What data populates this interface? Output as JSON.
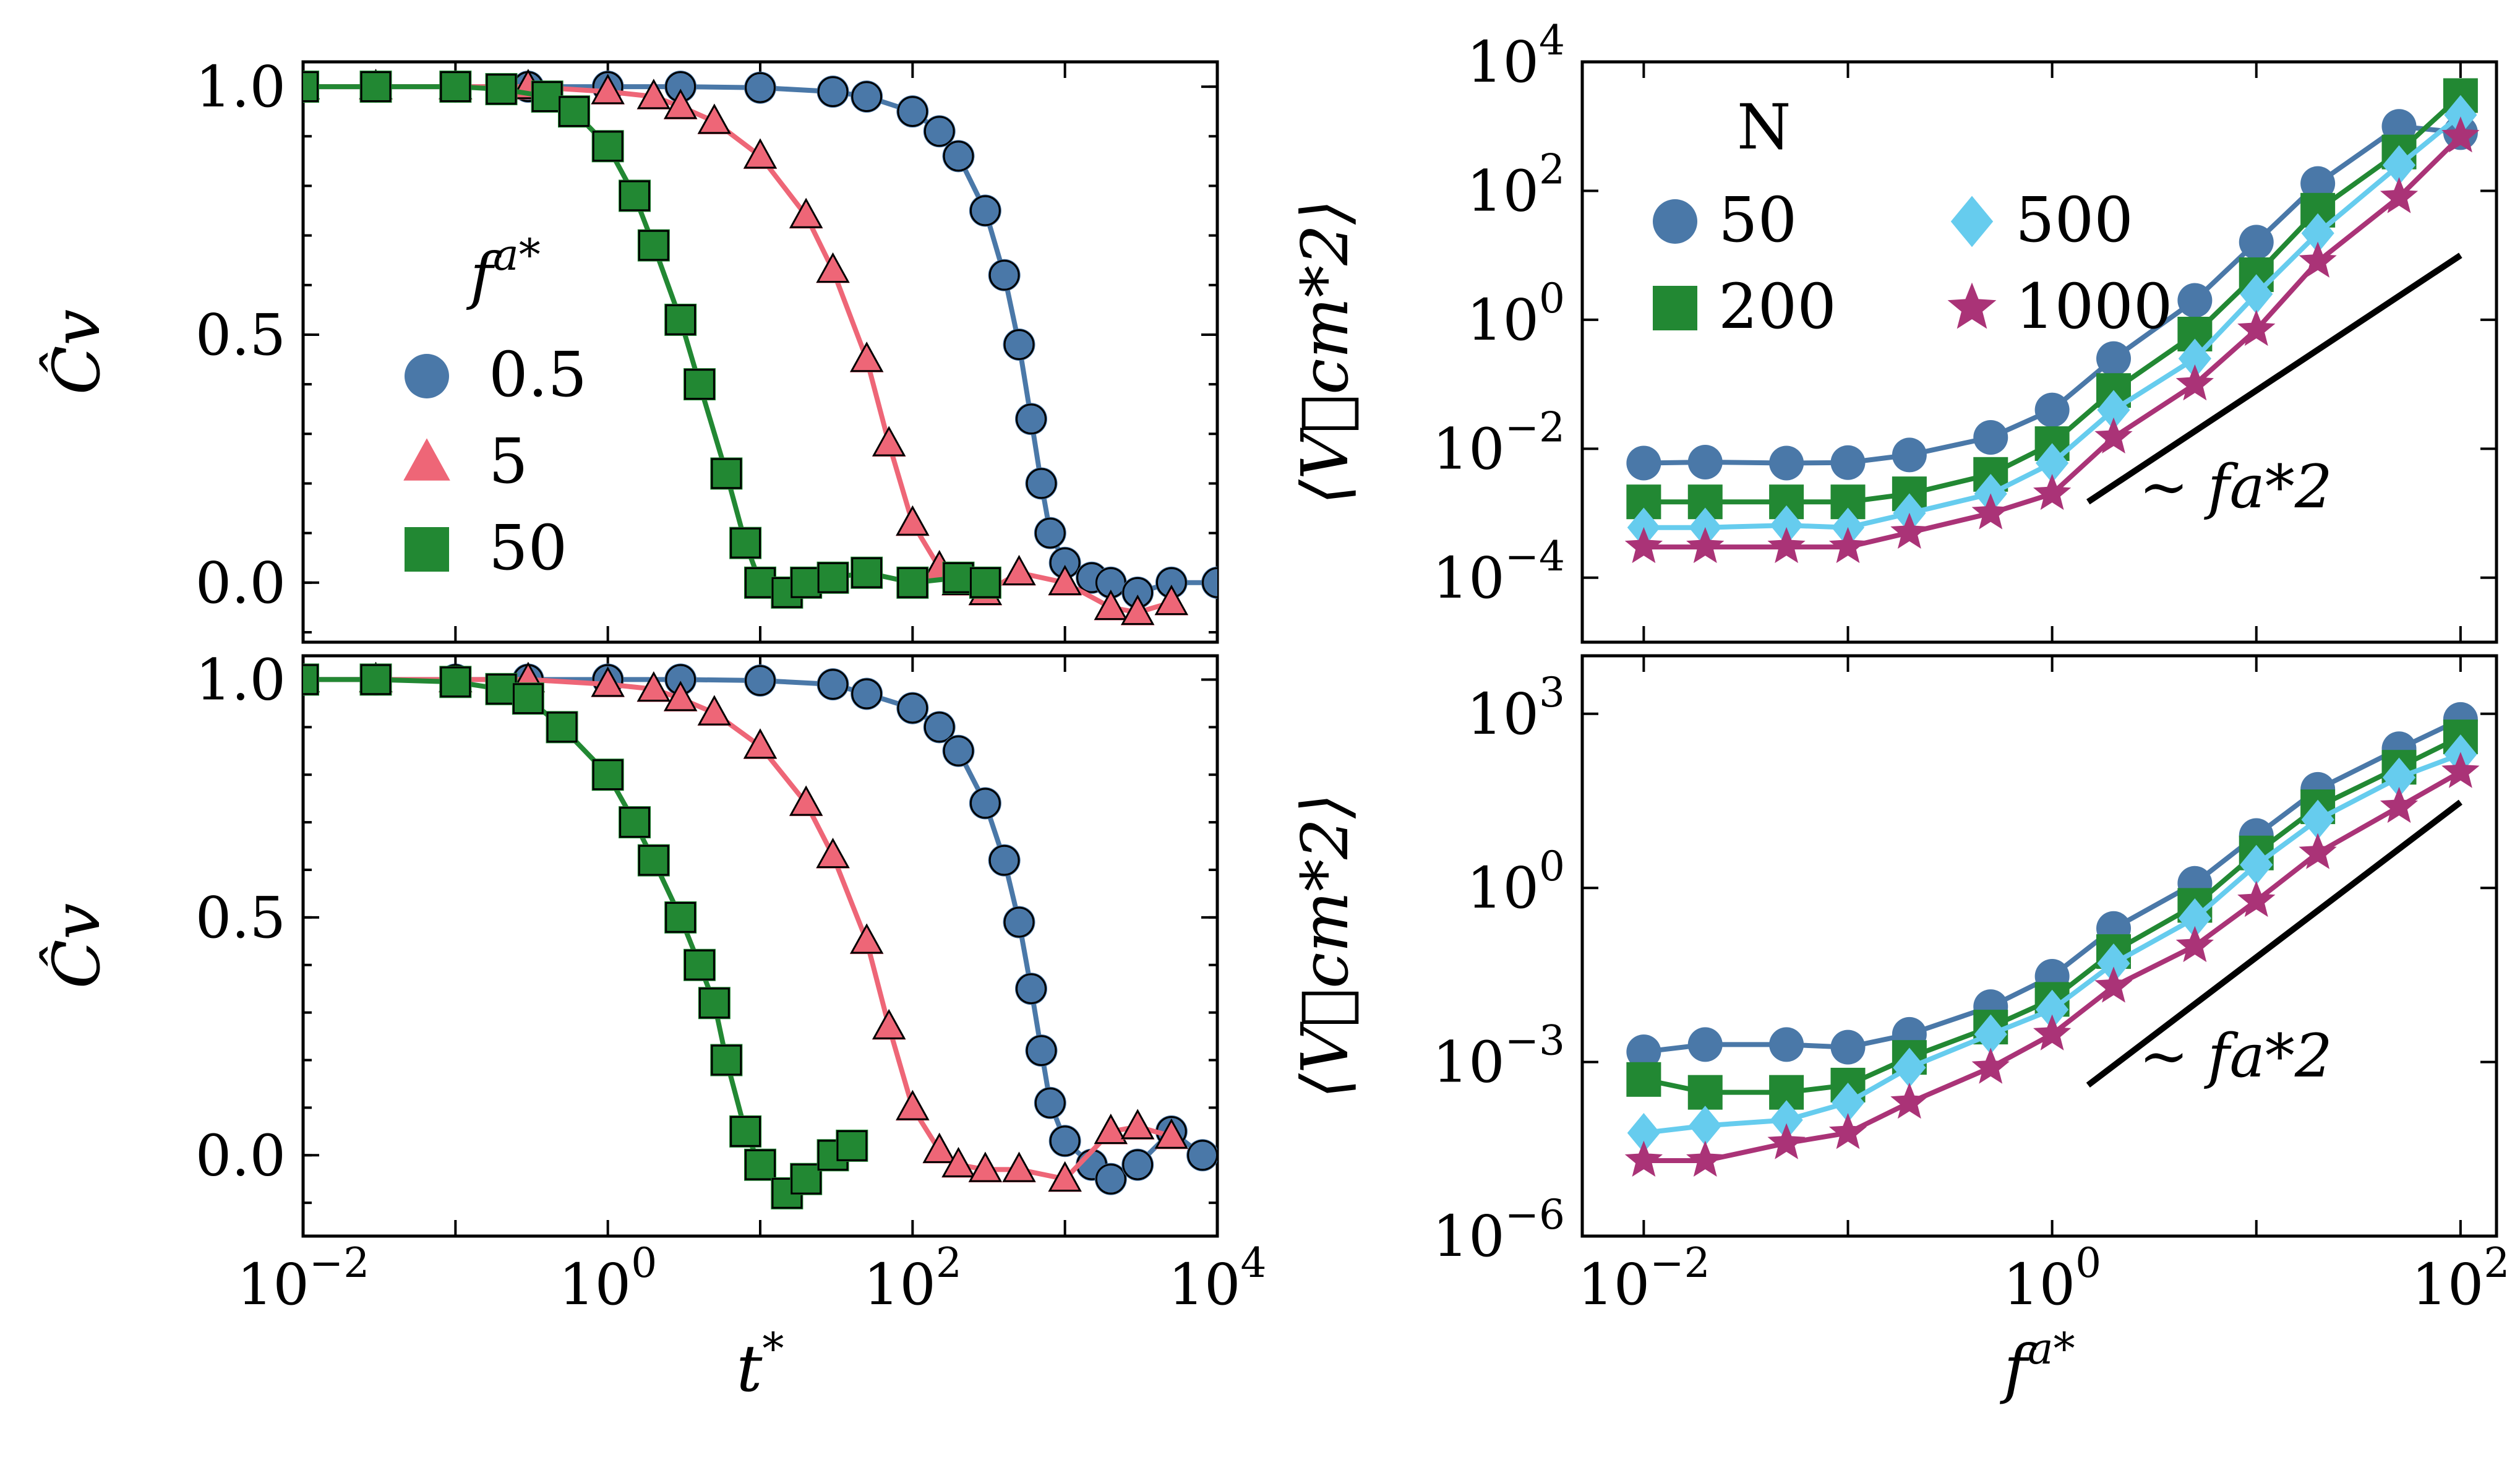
{
  "chart_data": [
    {
      "id": "top-left",
      "type": "line",
      "title": "",
      "xlabel": "",
      "ylabel": "Ĉv",
      "xscale": "log",
      "xlim": [
        0.01,
        10000
      ],
      "ylim": [
        -0.12,
        1.05
      ],
      "yticks": [
        "0.0",
        "0.5",
        "1.0"
      ],
      "xticks": [],
      "legend_title": "fa*",
      "legend_position": "center-left",
      "series": [
        {
          "name": "0.5",
          "color": "#4a78a8",
          "marker": "circle",
          "x": [
            0.01,
            0.03,
            0.1,
            0.3,
            1,
            3,
            10,
            30,
            50,
            100,
            150,
            200,
            300,
            400,
            500,
            600,
            700,
            800,
            1000,
            1500,
            2000,
            3000,
            5000,
            10000
          ],
          "y": [
            1.0,
            1.0,
            1.0,
            1.0,
            1.0,
            1.0,
            0.998,
            0.99,
            0.98,
            0.95,
            0.91,
            0.86,
            0.75,
            0.62,
            0.48,
            0.33,
            0.2,
            0.1,
            0.04,
            0.01,
            0.0,
            -0.02,
            0.0,
            0.0
          ]
        },
        {
          "name": "5",
          "color": "#ee6677",
          "marker": "triangle",
          "x": [
            0.01,
            0.03,
            0.1,
            0.3,
            1,
            2,
            3,
            5,
            10,
            20,
            30,
            50,
            70,
            100,
            150,
            200,
            300,
            500,
            1000,
            2000,
            3000,
            5000
          ],
          "y": [
            1.0,
            1.0,
            1.0,
            1.0,
            0.99,
            0.98,
            0.96,
            0.93,
            0.86,
            0.74,
            0.63,
            0.45,
            0.28,
            0.12,
            0.03,
            0.0,
            -0.02,
            0.02,
            0.0,
            -0.05,
            -0.06,
            -0.04
          ]
        },
        {
          "name": "50",
          "color": "#228833",
          "marker": "square",
          "x": [
            0.01,
            0.03,
            0.1,
            0.2,
            0.4,
            0.6,
            1,
            1.5,
            2,
            3,
            4,
            6,
            8,
            10,
            15,
            20,
            30,
            50,
            100,
            200,
            300
          ],
          "y": [
            1.0,
            1.0,
            1.0,
            0.995,
            0.98,
            0.95,
            0.88,
            0.78,
            0.68,
            0.53,
            0.4,
            0.22,
            0.08,
            0.0,
            -0.02,
            0.0,
            0.01,
            0.02,
            0.0,
            0.01,
            0.0
          ]
        }
      ]
    },
    {
      "id": "bottom-left",
      "type": "line",
      "title": "",
      "xlabel": "t*",
      "ylabel": "Ĉv",
      "xscale": "log",
      "xlim": [
        0.01,
        10000
      ],
      "ylim": [
        -0.17,
        1.05
      ],
      "yticks": [
        "0.0",
        "0.5",
        "1.0"
      ],
      "xticks": [
        "10−2",
        "100",
        "102",
        "104"
      ],
      "series": [
        {
          "name": "0.5",
          "color": "#4a78a8",
          "marker": "circle",
          "x": [
            0.01,
            0.03,
            0.1,
            0.3,
            1,
            3,
            10,
            30,
            50,
            100,
            150,
            200,
            300,
            400,
            500,
            600,
            700,
            800,
            1000,
            1500,
            2000,
            3000,
            5000,
            8000
          ],
          "y": [
            1.0,
            1.0,
            1.0,
            1.0,
            1.0,
            1.0,
            0.998,
            0.99,
            0.97,
            0.94,
            0.9,
            0.85,
            0.74,
            0.62,
            0.49,
            0.35,
            0.22,
            0.11,
            0.03,
            -0.02,
            -0.05,
            -0.02,
            0.05,
            0.0
          ]
        },
        {
          "name": "5",
          "color": "#ee6677",
          "marker": "triangle",
          "x": [
            0.01,
            0.03,
            0.1,
            0.3,
            1,
            2,
            3,
            5,
            10,
            20,
            30,
            50,
            70,
            100,
            150,
            200,
            300,
            500,
            1000,
            2000,
            3000,
            5000
          ],
          "y": [
            1.0,
            1.0,
            1.0,
            1.0,
            0.99,
            0.98,
            0.96,
            0.93,
            0.86,
            0.74,
            0.63,
            0.45,
            0.27,
            0.1,
            0.01,
            -0.02,
            -0.03,
            -0.03,
            -0.05,
            0.05,
            0.06,
            0.04
          ]
        },
        {
          "name": "50",
          "color": "#228833",
          "marker": "square",
          "x": [
            0.01,
            0.03,
            0.1,
            0.2,
            0.3,
            0.5,
            1,
            1.5,
            2,
            3,
            4,
            5,
            6,
            8,
            10,
            15,
            20,
            30,
            40
          ],
          "y": [
            1.0,
            1.0,
            0.995,
            0.98,
            0.96,
            0.9,
            0.8,
            0.7,
            0.62,
            0.5,
            0.4,
            0.32,
            0.2,
            0.05,
            -0.02,
            -0.08,
            -0.05,
            0.0,
            0.02
          ]
        }
      ]
    },
    {
      "id": "top-right",
      "type": "line",
      "title": "",
      "xlabel": "",
      "ylabel": "⟨V⃗cm*2⟩",
      "xscale": "log",
      "yscale": "log",
      "xlim": [
        0.005,
        150
      ],
      "ylim": [
        1e-05,
        10000
      ],
      "yticks": [
        "10−4",
        "10−2",
        "100",
        "102",
        "104"
      ],
      "xticks": [],
      "legend_title": "N",
      "legend_position": "top-left",
      "annotation": "∼ fa*2",
      "series": [
        {
          "name": "50",
          "color": "#4a78a8",
          "marker": "circle",
          "x": [
            0.01,
            0.02,
            0.05,
            0.1,
            0.2,
            0.5,
            1,
            2,
            5,
            10,
            20,
            50,
            100
          ],
          "y": [
            0.006,
            0.0062,
            0.006,
            0.0061,
            0.008,
            0.015,
            0.04,
            0.25,
            2,
            16,
            130,
            1000,
            800
          ]
        },
        {
          "name": "200",
          "color": "#228833",
          "marker": "square",
          "x": [
            0.01,
            0.02,
            0.05,
            0.1,
            0.2,
            0.5,
            1,
            2,
            5,
            10,
            20,
            50,
            100
          ],
          "y": [
            0.0015,
            0.0015,
            0.0015,
            0.0015,
            0.002,
            0.004,
            0.012,
            0.08,
            0.6,
            5,
            50,
            400,
            3000
          ]
        },
        {
          "name": "500",
          "color": "#66ccee",
          "marker": "diamond",
          "x": [
            0.01,
            0.02,
            0.05,
            0.1,
            0.2,
            0.5,
            1,
            2,
            5,
            10,
            20,
            50,
            100
          ],
          "y": [
            0.0006,
            0.0006,
            0.00065,
            0.0006,
            0.001,
            0.002,
            0.006,
            0.04,
            0.25,
            2.5,
            22,
            250,
            1500
          ]
        },
        {
          "name": "1000",
          "color": "#aa3377",
          "marker": "star",
          "x": [
            0.01,
            0.02,
            0.05,
            0.1,
            0.2,
            0.5,
            1,
            2,
            5,
            10,
            20,
            50,
            100
          ],
          "y": [
            0.0003,
            0.0003,
            0.0003,
            0.0003,
            0.0005,
            0.001,
            0.002,
            0.015,
            0.1,
            0.7,
            8,
            80,
            700
          ]
        }
      ],
      "reference_line": {
        "x": [
          1.5,
          100
        ],
        "y": [
          0.0015,
          10
        ]
      }
    },
    {
      "id": "bottom-right",
      "type": "line",
      "title": "",
      "xlabel": "fa*",
      "ylabel": "⟨V⃗cm*2⟩",
      "xscale": "log",
      "yscale": "log",
      "xlim": [
        0.005,
        150
      ],
      "ylim": [
        1e-06,
        10000
      ],
      "yticks": [
        "10−6",
        "10−3",
        "100",
        "103"
      ],
      "xticks": [
        "10−2",
        "100",
        "102"
      ],
      "annotation": "∼ fa*2",
      "series": [
        {
          "name": "50",
          "color": "#4a78a8",
          "marker": "circle",
          "x": [
            0.01,
            0.02,
            0.05,
            0.1,
            0.2,
            0.5,
            1,
            2,
            5,
            10,
            20,
            50,
            100
          ],
          "y": [
            0.0015,
            0.002,
            0.002,
            0.0018,
            0.003,
            0.009,
            0.03,
            0.2,
            1.2,
            8,
            50,
            250,
            800
          ]
        },
        {
          "name": "200",
          "color": "#228833",
          "marker": "square",
          "x": [
            0.01,
            0.02,
            0.05,
            0.1,
            0.2,
            0.5,
            1,
            2,
            5,
            10,
            20,
            50,
            100
          ],
          "y": [
            0.0005,
            0.0003,
            0.0003,
            0.0004,
            0.0012,
            0.004,
            0.012,
            0.08,
            0.5,
            4,
            25,
            120,
            400
          ]
        },
        {
          "name": "500",
          "color": "#66ccee",
          "marker": "diamond",
          "x": [
            0.01,
            0.02,
            0.05,
            0.1,
            0.2,
            0.5,
            1,
            2,
            5,
            10,
            20,
            50,
            100
          ],
          "y": [
            6e-05,
            8e-05,
            0.0001,
            0.0002,
            0.0008,
            0.003,
            0.008,
            0.05,
            0.3,
            2.5,
            15,
            80,
            200
          ]
        },
        {
          "name": "1000",
          "color": "#aa3377",
          "marker": "star",
          "x": [
            0.01,
            0.02,
            0.05,
            0.1,
            0.2,
            0.5,
            1,
            2,
            5,
            10,
            20,
            50,
            100
          ],
          "y": [
            2e-05,
            2e-05,
            4e-05,
            6e-05,
            0.0002,
            0.0008,
            0.003,
            0.02,
            0.1,
            0.6,
            4,
            25,
            100
          ]
        }
      ],
      "reference_line": {
        "x": [
          1.5,
          100
        ],
        "y": [
          0.0004,
          30
        ]
      }
    }
  ]
}
